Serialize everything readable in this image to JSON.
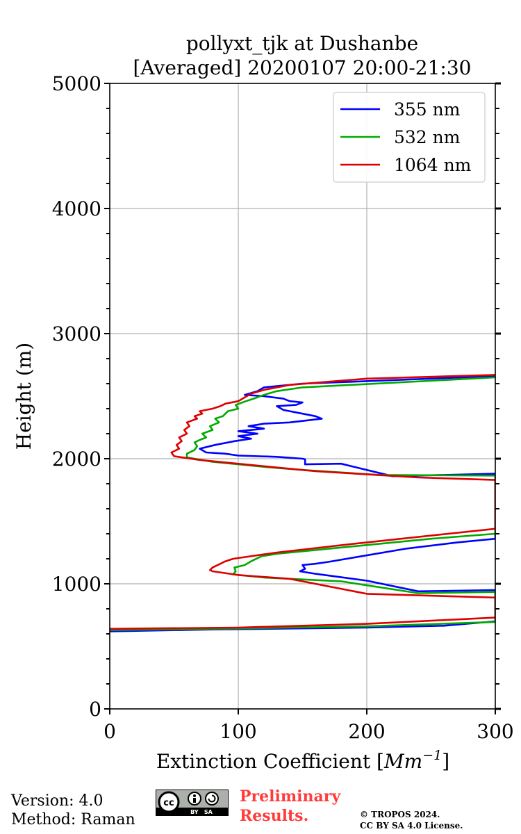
{
  "chart_data": {
    "type": "line",
    "title_line1": "pollyxt_tjk at Dushanbe",
    "title_line2": "[Averaged] 20200107 20:00-21:30",
    "xlabel_text": "Extinction Coefficient [",
    "xlabel_unit": "Mm",
    "xlabel_exp": "−1",
    "xlabel_close": "]",
    "ylabel": "Height (m)",
    "xlim": [
      0,
      300
    ],
    "ylim": [
      0,
      5000
    ],
    "xticks": [
      0,
      100,
      200,
      300
    ],
    "xtick_labels": [
      "0",
      "100",
      "200",
      "300"
    ],
    "yticks": [
      0,
      1000,
      2000,
      3000,
      4000,
      5000
    ],
    "ytick_labels": [
      "0",
      "1000",
      "2000",
      "3000",
      "4000",
      "5000"
    ],
    "grid": true,
    "legend_position": "top-right",
    "series": [
      {
        "name": "355 nm",
        "color": "#0000ff",
        "points": [
          [
            0,
            620
          ],
          [
            80,
            635
          ],
          [
            200,
            650
          ],
          [
            260,
            665
          ],
          [
            300,
            700
          ],
          [
            300,
            950
          ],
          [
            240,
            940
          ],
          [
            200,
            1025
          ],
          [
            160,
            1080
          ],
          [
            148,
            1100
          ],
          [
            152,
            1120
          ],
          [
            150,
            1150
          ],
          [
            160,
            1160
          ],
          [
            170,
            1175
          ],
          [
            190,
            1210
          ],
          [
            230,
            1280
          ],
          [
            270,
            1330
          ],
          [
            300,
            1360
          ],
          [
            300,
            1880
          ],
          [
            220,
            1860
          ],
          [
            180,
            1960
          ],
          [
            152,
            1955
          ],
          [
            152,
            1995
          ],
          [
            150,
            2000
          ],
          [
            130,
            2015
          ],
          [
            100,
            2025
          ],
          [
            90,
            2040
          ],
          [
            75,
            2050
          ],
          [
            70,
            2080
          ],
          [
            82,
            2110
          ],
          [
            97,
            2140
          ],
          [
            110,
            2160
          ],
          [
            100,
            2180
          ],
          [
            115,
            2200
          ],
          [
            100,
            2220
          ],
          [
            120,
            2240
          ],
          [
            108,
            2260
          ],
          [
            120,
            2280
          ],
          [
            140,
            2290
          ],
          [
            165,
            2320
          ],
          [
            160,
            2340
          ],
          [
            150,
            2360
          ],
          [
            140,
            2380
          ],
          [
            135,
            2390
          ],
          [
            130,
            2420
          ],
          [
            145,
            2430
          ],
          [
            150,
            2450
          ],
          [
            140,
            2460
          ],
          [
            135,
            2480
          ],
          [
            120,
            2500
          ],
          [
            105,
            2510
          ],
          [
            115,
            2540
          ],
          [
            120,
            2570
          ],
          [
            130,
            2580
          ],
          [
            150,
            2600
          ],
          [
            300,
            2660
          ]
        ]
      },
      {
        "name": "532 nm",
        "color": "#00aa00",
        "points": [
          [
            0,
            630
          ],
          [
            80,
            640
          ],
          [
            200,
            660
          ],
          [
            300,
            695
          ],
          [
            300,
            935
          ],
          [
            240,
            925
          ],
          [
            180,
            1020
          ],
          [
            120,
            1050
          ],
          [
            96,
            1075
          ],
          [
            98,
            1100
          ],
          [
            97,
            1130
          ],
          [
            105,
            1150
          ],
          [
            110,
            1180
          ],
          [
            118,
            1220
          ],
          [
            130,
            1240
          ],
          [
            180,
            1290
          ],
          [
            250,
            1360
          ],
          [
            300,
            1400
          ],
          [
            300,
            1865
          ],
          [
            210,
            1870
          ],
          [
            150,
            1910
          ],
          [
            120,
            1935
          ],
          [
            100,
            1955
          ],
          [
            80,
            1975
          ],
          [
            60,
            2010
          ],
          [
            60,
            2040
          ],
          [
            66,
            2070
          ],
          [
            68,
            2100
          ],
          [
            66,
            2130
          ],
          [
            70,
            2150
          ],
          [
            75,
            2170
          ],
          [
            72,
            2200
          ],
          [
            80,
            2230
          ],
          [
            78,
            2260
          ],
          [
            85,
            2290
          ],
          [
            82,
            2320
          ],
          [
            88,
            2340
          ],
          [
            92,
            2380
          ],
          [
            100,
            2400
          ],
          [
            98,
            2430
          ],
          [
            106,
            2460
          ],
          [
            112,
            2480
          ],
          [
            120,
            2510
          ],
          [
            130,
            2540
          ],
          [
            150,
            2570
          ],
          [
            300,
            2650
          ]
        ]
      },
      {
        "name": "1064 nm",
        "color": "#dd0000",
        "points": [
          [
            0,
            640
          ],
          [
            100,
            650
          ],
          [
            200,
            680
          ],
          [
            300,
            730
          ],
          [
            300,
            890
          ],
          [
            200,
            920
          ],
          [
            140,
            1040
          ],
          [
            100,
            1070
          ],
          [
            80,
            1100
          ],
          [
            78,
            1110
          ],
          [
            80,
            1130
          ],
          [
            86,
            1160
          ],
          [
            90,
            1180
          ],
          [
            96,
            1200
          ],
          [
            130,
            1250
          ],
          [
            190,
            1320
          ],
          [
            300,
            1440
          ],
          [
            300,
            1830
          ],
          [
            240,
            1850
          ],
          [
            160,
            1900
          ],
          [
            110,
            1950
          ],
          [
            90,
            1970
          ],
          [
            70,
            1990
          ],
          [
            50,
            2020
          ],
          [
            48,
            2050
          ],
          [
            54,
            2080
          ],
          [
            52,
            2110
          ],
          [
            56,
            2140
          ],
          [
            54,
            2170
          ],
          [
            60,
            2200
          ],
          [
            58,
            2230
          ],
          [
            62,
            2260
          ],
          [
            60,
            2290
          ],
          [
            68,
            2320
          ],
          [
            66,
            2340
          ],
          [
            72,
            2360
          ],
          [
            70,
            2380
          ],
          [
            80,
            2400
          ],
          [
            86,
            2420
          ],
          [
            90,
            2440
          ],
          [
            100,
            2460
          ],
          [
            105,
            2490
          ],
          [
            110,
            2520
          ],
          [
            120,
            2550
          ],
          [
            140,
            2590
          ],
          [
            200,
            2640
          ],
          [
            300,
            2670
          ]
        ]
      }
    ]
  },
  "footer": {
    "version": "Version: 4.0",
    "method": "Method: Raman",
    "license_badge_bottom": "BY   SA",
    "license_badge_cc": "cc",
    "preliminary_line1": "Preliminary",
    "preliminary_line2": "Results.",
    "copyright_line1": "© TROPOS 2024.",
    "copyright_line2": "CC BY SA 4.0 License."
  }
}
